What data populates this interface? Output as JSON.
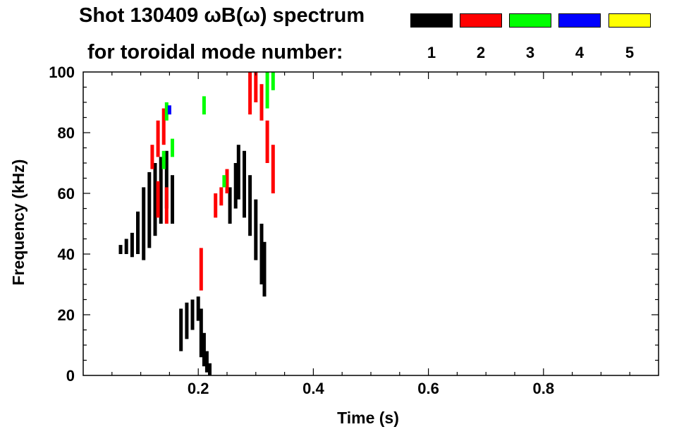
{
  "chart_data": {
    "type": "heatmap",
    "title": "Shot 130409 ωB(ω) spectrum",
    "subtitle": "for toroidal mode number:",
    "xlabel": "Time (s)",
    "ylabel": "Frequency (kHz)",
    "xlim": [
      0.0,
      1.0
    ],
    "ylim": [
      0,
      100
    ],
    "x_ticks": [
      0.2,
      0.4,
      0.6,
      0.8
    ],
    "x_tick_labels": [
      "0.2",
      "0.4",
      "0.6",
      "0.8"
    ],
    "y_ticks": [
      0,
      20,
      40,
      60,
      80,
      100
    ],
    "y_tick_labels": [
      "0",
      "20",
      "40",
      "60",
      "80",
      "100"
    ],
    "grid": false,
    "legend_position": "top-right",
    "legend": [
      {
        "label": "1",
        "color": "#000000"
      },
      {
        "label": "2",
        "color": "#ff0000"
      },
      {
        "label": "3",
        "color": "#00ff00"
      },
      {
        "label": "4",
        "color": "#0000ff"
      },
      {
        "label": "5",
        "color": "#ffff00"
      }
    ],
    "series": [
      {
        "mode": "1",
        "color": "#000000",
        "points": [
          [
            0.065,
            40,
            43
          ],
          [
            0.075,
            40,
            45
          ],
          [
            0.085,
            39,
            47
          ],
          [
            0.095,
            40,
            54
          ],
          [
            0.105,
            38,
            62
          ],
          [
            0.115,
            42,
            67
          ],
          [
            0.125,
            46,
            70
          ],
          [
            0.135,
            50,
            72
          ],
          [
            0.145,
            55,
            74
          ],
          [
            0.155,
            50,
            66
          ],
          [
            0.17,
            8,
            22
          ],
          [
            0.18,
            12,
            24
          ],
          [
            0.19,
            15,
            25
          ],
          [
            0.2,
            18,
            26
          ],
          [
            0.205,
            6,
            22
          ],
          [
            0.21,
            3,
            14
          ],
          [
            0.215,
            1,
            8
          ],
          [
            0.22,
            0,
            4
          ],
          [
            0.255,
            50,
            62
          ],
          [
            0.265,
            55,
            70
          ],
          [
            0.27,
            58,
            76
          ],
          [
            0.28,
            52,
            74
          ],
          [
            0.29,
            46,
            66
          ],
          [
            0.3,
            38,
            58
          ],
          [
            0.31,
            30,
            50
          ],
          [
            0.315,
            26,
            44
          ]
        ]
      },
      {
        "mode": "2",
        "color": "#ff0000",
        "points": [
          [
            0.12,
            68,
            76
          ],
          [
            0.13,
            72,
            84
          ],
          [
            0.14,
            76,
            88
          ],
          [
            0.13,
            52,
            64
          ],
          [
            0.145,
            50,
            62
          ],
          [
            0.205,
            28,
            42
          ],
          [
            0.23,
            52,
            60
          ],
          [
            0.24,
            56,
            62
          ],
          [
            0.25,
            60,
            68
          ],
          [
            0.29,
            86,
            100
          ],
          [
            0.3,
            90,
            100
          ],
          [
            0.31,
            84,
            96
          ],
          [
            0.32,
            70,
            84
          ],
          [
            0.33,
            60,
            76
          ]
        ]
      },
      {
        "mode": "3",
        "color": "#00ff00",
        "points": [
          [
            0.14,
            68,
            74
          ],
          [
            0.145,
            84,
            90
          ],
          [
            0.155,
            72,
            78
          ],
          [
            0.21,
            86,
            92
          ],
          [
            0.245,
            62,
            66
          ],
          [
            0.32,
            88,
            100
          ],
          [
            0.33,
            94,
            100
          ]
        ]
      },
      {
        "mode": "4",
        "color": "#0000ff",
        "points": [
          [
            0.15,
            86,
            89
          ]
        ]
      },
      {
        "mode": "5",
        "color": "#ffff00",
        "points": []
      }
    ]
  }
}
